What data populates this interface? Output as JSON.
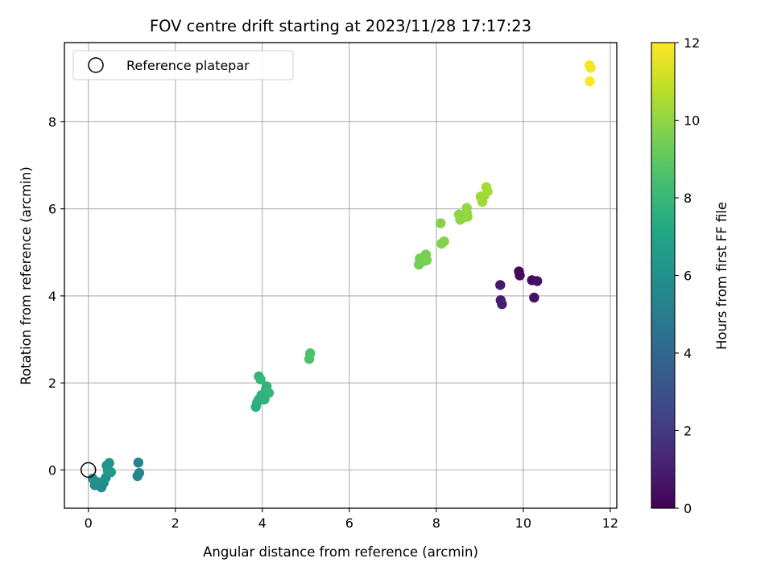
{
  "chart_data": {
    "type": "scatter",
    "title": "FOV centre drift starting at 2023/11/28 17:17:23",
    "xlabel": "Angular distance from reference (arcmin)",
    "ylabel": "Rotation from reference (arcmin)",
    "xlim": [
      -0.55,
      12.15
    ],
    "ylim": [
      -0.88,
      9.82
    ],
    "xticks": [
      0,
      2,
      4,
      6,
      8,
      10,
      12
    ],
    "yticks": [
      0,
      2,
      4,
      6,
      8
    ],
    "grid": true,
    "colormap": "viridis",
    "colorbar": {
      "label": "Hours from first FF file",
      "range": [
        0,
        12
      ],
      "ticks": [
        0,
        2,
        4,
        6,
        8,
        10,
        12
      ]
    },
    "legend": {
      "placement": "top-left",
      "entries": [
        {
          "label": "Reference platepar",
          "marker": "open-circle"
        }
      ]
    },
    "reference_point": {
      "x": 0,
      "y": 0
    },
    "points": [
      {
        "x": 9.9,
        "y": 4.56,
        "hours": 0.2
      },
      {
        "x": 9.92,
        "y": 4.47,
        "hours": 0.3
      },
      {
        "x": 10.2,
        "y": 4.36,
        "hours": 0.4
      },
      {
        "x": 10.32,
        "y": 4.34,
        "hours": 0.5
      },
      {
        "x": 10.25,
        "y": 3.96,
        "hours": 0.6
      },
      {
        "x": 9.47,
        "y": 4.25,
        "hours": 0.8
      },
      {
        "x": 9.48,
        "y": 3.9,
        "hours": 0.9
      },
      {
        "x": 9.51,
        "y": 3.81,
        "hours": 1.0
      },
      {
        "x": 1.15,
        "y": 0.17,
        "hours": 5.3
      },
      {
        "x": 1.17,
        "y": -0.07,
        "hours": 5.4
      },
      {
        "x": 1.13,
        "y": -0.14,
        "hours": 5.5
      },
      {
        "x": 0.3,
        "y": -0.4,
        "hours": 5.6
      },
      {
        "x": 0.35,
        "y": -0.3,
        "hours": 5.7
      },
      {
        "x": 0.15,
        "y": -0.35,
        "hours": 5.8
      },
      {
        "x": 0.1,
        "y": -0.2,
        "hours": 5.9
      },
      {
        "x": 0.22,
        "y": -0.28,
        "hours": 6.0
      },
      {
        "x": 0.4,
        "y": -0.18,
        "hours": 6.0
      },
      {
        "x": 0.42,
        "y": 0.1,
        "hours": 6.1
      },
      {
        "x": 0.48,
        "y": 0.16,
        "hours": 6.2
      },
      {
        "x": 0.45,
        "y": -0.02,
        "hours": 6.3
      },
      {
        "x": 0.52,
        "y": -0.05,
        "hours": 6.4
      },
      {
        "x": 3.85,
        "y": 1.45,
        "hours": 7.5
      },
      {
        "x": 3.88,
        "y": 1.55,
        "hours": 7.6
      },
      {
        "x": 3.92,
        "y": 1.62,
        "hours": 7.6
      },
      {
        "x": 3.98,
        "y": 1.72,
        "hours": 7.7
      },
      {
        "x": 4.05,
        "y": 1.62,
        "hours": 7.7
      },
      {
        "x": 4.08,
        "y": 1.85,
        "hours": 7.8
      },
      {
        "x": 4.1,
        "y": 1.92,
        "hours": 7.8
      },
      {
        "x": 4.15,
        "y": 1.77,
        "hours": 7.9
      },
      {
        "x": 3.92,
        "y": 2.15,
        "hours": 7.9
      },
      {
        "x": 3.96,
        "y": 2.08,
        "hours": 8.0
      },
      {
        "x": 5.1,
        "y": 2.68,
        "hours": 8.5
      },
      {
        "x": 5.08,
        "y": 2.55,
        "hours": 8.6
      },
      {
        "x": 7.6,
        "y": 4.72,
        "hours": 9.4
      },
      {
        "x": 7.62,
        "y": 4.86,
        "hours": 9.4
      },
      {
        "x": 7.72,
        "y": 4.8,
        "hours": 9.5
      },
      {
        "x": 7.76,
        "y": 4.95,
        "hours": 9.5
      },
      {
        "x": 7.78,
        "y": 4.82,
        "hours": 9.6
      },
      {
        "x": 8.12,
        "y": 5.2,
        "hours": 9.7
      },
      {
        "x": 8.18,
        "y": 5.25,
        "hours": 9.7
      },
      {
        "x": 8.1,
        "y": 5.67,
        "hours": 9.8
      },
      {
        "x": 8.55,
        "y": 5.75,
        "hours": 9.9
      },
      {
        "x": 8.52,
        "y": 5.87,
        "hours": 9.9
      },
      {
        "x": 8.62,
        "y": 5.8,
        "hours": 10.0
      },
      {
        "x": 8.7,
        "y": 5.92,
        "hours": 10.0
      },
      {
        "x": 8.72,
        "y": 5.82,
        "hours": 10.1
      },
      {
        "x": 8.7,
        "y": 6.02,
        "hours": 10.1
      },
      {
        "x": 9.02,
        "y": 6.28,
        "hours": 10.2
      },
      {
        "x": 9.06,
        "y": 6.16,
        "hours": 10.3
      },
      {
        "x": 9.1,
        "y": 6.3,
        "hours": 10.3
      },
      {
        "x": 9.15,
        "y": 6.5,
        "hours": 10.4
      },
      {
        "x": 9.18,
        "y": 6.4,
        "hours": 10.4
      },
      {
        "x": 11.52,
        "y": 9.3,
        "hours": 11.8
      },
      {
        "x": 11.55,
        "y": 9.24,
        "hours": 11.9
      },
      {
        "x": 11.53,
        "y": 8.93,
        "hours": 12.0
      }
    ]
  }
}
